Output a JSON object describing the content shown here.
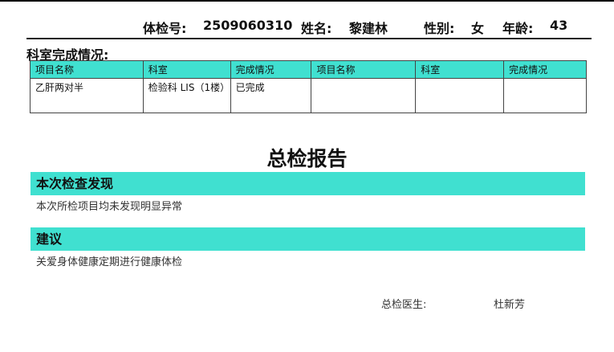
{
  "header": {
    "exam_no_label": "体检号:",
    "exam_no": "2509060310",
    "name_label": "姓名:",
    "name": "黎建林",
    "sex_label": "性别:",
    "sex": "女",
    "age_label": "年龄:",
    "age": "43"
  },
  "dept_section": {
    "title": "科室完成情况:",
    "columns": [
      "项目名称",
      "科室",
      "完成情况",
      "项目名称",
      "科室",
      "完成情况"
    ],
    "rows": [
      [
        "乙肝两对半",
        "检验科 LIS（1楼）",
        "已完成",
        "",
        "",
        ""
      ]
    ]
  },
  "report": {
    "title": "总检报告",
    "findings_heading": "本次检查发现",
    "findings_text": "本次所检项目均未发现明显异常",
    "advice_heading": "建议",
    "advice_text": "关爱身体健康定期进行健康体检",
    "doctor_label": "总检医生:",
    "doctor_name": "杜新芳"
  },
  "colors": {
    "accent": "#40e0d0"
  }
}
